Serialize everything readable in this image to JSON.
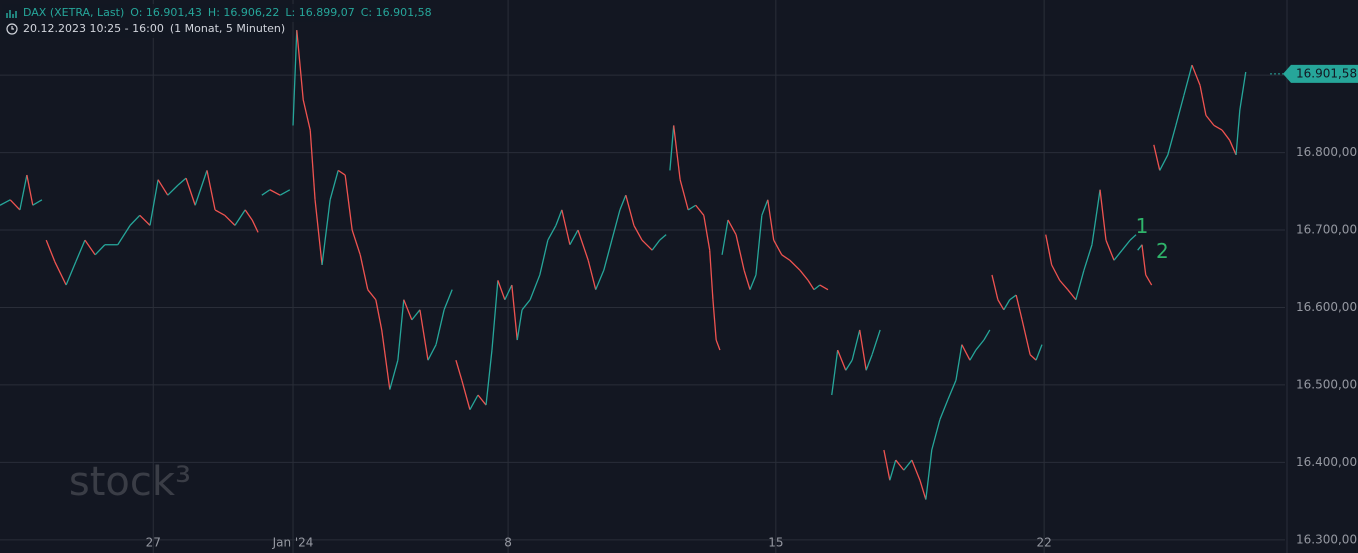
{
  "chart_data": {
    "type": "line",
    "title": "DAX (XETRA, Last)",
    "ohlc": [
      "O: 16.901,43",
      "H: 16.906,22",
      "L: 16.899,07",
      "C: 16.901,58"
    ],
    "subtitle": "20.12.2023 10:25 - 16:00",
    "interval": "(1 Monat, 5 Minuten)",
    "watermark": "stock³",
    "last_price": {
      "value": 16901.58,
      "label": "16.901,58"
    },
    "up_color": "#26a69a",
    "down_color": "#ef5350",
    "color": "#26a69a",
    "grid": true,
    "xlim": [
      0,
      23.9
    ],
    "ylim": [
      16283,
      16997
    ],
    "xticks": [
      {
        "value": 2.85,
        "label": "27"
      },
      {
        "value": 5.45,
        "label": "Jan '24"
      },
      {
        "value": 9.45,
        "label": "8"
      },
      {
        "value": 14.43,
        "label": "15"
      },
      {
        "value": 19.42,
        "label": "22"
      }
    ],
    "yticks": [
      {
        "value": 16300,
        "label": "16.300,00"
      },
      {
        "value": 16400,
        "label": "16.400,00"
      },
      {
        "value": 16500,
        "label": "16.500,00"
      },
      {
        "value": 16600,
        "label": "16.600,00"
      },
      {
        "value": 16700,
        "label": "16.700,00"
      },
      {
        "value": 16800,
        "label": "16.800,00"
      },
      {
        "value": 16900,
        "label": "16.900,00"
      }
    ],
    "annotations": [
      {
        "text": "1",
        "x": 21.24,
        "y": 16703
      },
      {
        "text": "2",
        "x": 21.62,
        "y": 16671
      }
    ],
    "x": [
      0,
      0.19,
      0.37,
      0.5,
      0.61,
      0.78,
      null,
      0.86,
      1.02,
      1.23,
      1.41,
      1.58,
      1.77,
      1.95,
      2.19,
      2.42,
      2.6,
      2.79,
      2.94,
      3.12,
      3.31,
      3.46,
      3.63,
      3.85,
      4,
      4.18,
      4.37,
      4.56,
      4.69,
      4.8,
      null,
      4.87,
      5.02,
      5.21,
      5.39,
      null,
      5.45,
      5.52,
      5.64,
      5.77,
      5.86,
      5.99,
      6.14,
      6.29,
      6.42,
      6.55,
      6.7,
      6.84,
      6.99,
      7.1,
      7.25,
      7.4,
      7.51,
      7.66,
      7.81,
      7.96,
      8.11,
      8.26,
      8.41,
      null,
      8.48,
      8.59,
      8.74,
      8.89,
      9.04,
      9.15,
      9.26,
      9.39,
      9.52,
      9.62,
      9.71,
      9.86,
      10.04,
      10.19,
      10.34,
      10.45,
      10.6,
      10.75,
      10.94,
      11.08,
      11.23,
      11.38,
      11.53,
      11.64,
      11.79,
      11.94,
      12.13,
      12.27,
      12.39,
      null,
      12.46,
      12.53,
      12.65,
      12.8,
      12.94,
      13.09,
      13.2,
      13.26,
      13.32,
      13.39,
      null,
      13.43,
      13.54,
      13.69,
      13.84,
      13.95,
      14.06,
      14.17,
      14.28,
      14.39,
      14.54,
      14.69,
      14.88,
      15.03,
      15.14,
      15.25,
      15.4,
      null,
      15.47,
      15.58,
      15.73,
      15.85,
      15.99,
      16.11,
      16.22,
      16.37,
      null,
      16.44,
      16.55,
      16.66,
      16.81,
      16.96,
      17.11,
      17.22,
      17.33,
      17.48,
      17.63,
      17.78,
      17.89,
      18.04,
      18.15,
      18.3,
      18.41,
      null,
      18.45,
      18.56,
      18.67,
      18.78,
      18.9,
      19.01,
      19.16,
      19.27,
      19.38,
      null,
      19.45,
      19.56,
      19.71,
      19.86,
      20.01,
      20.16,
      20.31,
      20.46,
      20.57,
      20.72,
      20.87,
      21.02,
      21.13,
      null,
      21.16,
      21.24,
      21.31,
      21.42,
      null,
      21.46,
      21.57,
      21.72,
      21.87,
      22.02,
      22.17,
      22.32,
      22.43,
      22.58,
      22.73,
      22.87,
      22.99,
      23.06,
      23.17
    ],
    "values": [
      16732,
      16739,
      16726,
      16771,
      16732,
      16739,
      null,
      16687,
      16659,
      16629,
      16659,
      16687,
      16668,
      16681,
      16681,
      16706,
      16719,
      16706,
      16765,
      16745,
      16758,
      16767,
      16732,
      16777,
      16726,
      16719,
      16706,
      16726,
      16713,
      16697,
      null,
      16745,
      16752,
      16745,
      16752,
      null,
      16835,
      16958,
      16868,
      16829,
      16739,
      16655,
      16739,
      16777,
      16771,
      16700,
      16668,
      16623,
      16610,
      16571,
      16494,
      16532,
      16610,
      16584,
      16597,
      16532,
      16552,
      16597,
      16623,
      null,
      16532,
      16506,
      16468,
      16487,
      16474,
      16545,
      16635,
      16610,
      16629,
      16558,
      16597,
      16610,
      16642,
      16687,
      16706,
      16726,
      16681,
      16700,
      16661,
      16623,
      16648,
      16687,
      16726,
      16745,
      16706,
      16687,
      16674,
      16687,
      16694,
      null,
      16777,
      16835,
      16765,
      16726,
      16732,
      16719,
      16674,
      16610,
      16558,
      16545,
      null,
      16668,
      16713,
      16694,
      16648,
      16623,
      16642,
      16719,
      16739,
      16687,
      16668,
      16661,
      16648,
      16635,
      16623,
      16629,
      16623,
      null,
      16487,
      16545,
      16519,
      16532,
      16571,
      16519,
      16539,
      16571,
      null,
      16416,
      16377,
      16403,
      16390,
      16403,
      16377,
      16352,
      16416,
      16455,
      16481,
      16506,
      16552,
      16532,
      16545,
      16558,
      16571,
      null,
      16642,
      16610,
      16597,
      16610,
      16616,
      16584,
      16539,
      16532,
      16552,
      null,
      16694,
      16655,
      16635,
      16623,
      16610,
      16648,
      16681,
      16752,
      16687,
      16661,
      16674,
      16687,
      16694,
      null,
      16674,
      16681,
      16642,
      16629,
      null,
      16810,
      16777,
      16797,
      16835,
      16874,
      16913,
      16887,
      16848,
      16835,
      16829,
      16816,
      16797,
      16855,
      16904
    ]
  }
}
